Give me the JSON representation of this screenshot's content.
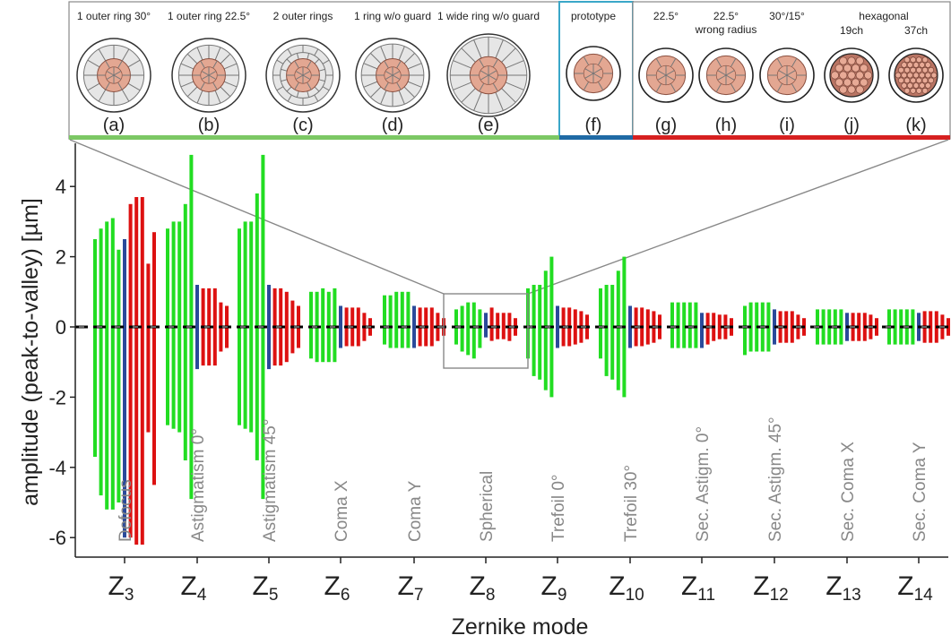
{
  "chart_data": {
    "type": "bar",
    "xlabel": "Zernike mode",
    "ylabel": "amplitude (peak-to-valley) [µm]",
    "ylim": [
      -6.5,
      5.2
    ],
    "yticks": [
      -6,
      -4,
      -2,
      0,
      2,
      4
    ],
    "grid": false,
    "legend": "none",
    "colors": {
      "ring_designs": "#22dd22",
      "prototype": "#2a4a9a",
      "prototype_variants": "#dd1111",
      "zero_line": "#000000",
      "frame": "#888888"
    },
    "categories": [
      {
        "tick": "Z",
        "sub": "3",
        "label": "Defocus"
      },
      {
        "tick": "Z",
        "sub": "4",
        "label": "Astigmatism 0°"
      },
      {
        "tick": "Z",
        "sub": "5",
        "label": "Astigmatism 45°"
      },
      {
        "tick": "Z",
        "sub": "6",
        "label": "Coma X"
      },
      {
        "tick": "Z",
        "sub": "7",
        "label": "Coma Y"
      },
      {
        "tick": "Z",
        "sub": "8",
        "label": "Spherical"
      },
      {
        "tick": "Z",
        "sub": "9",
        "label": "Trefoil 0°"
      },
      {
        "tick": "Z",
        "sub": "10",
        "label": "Trefoil 30°"
      },
      {
        "tick": "Z",
        "sub": "11",
        "label": "Sec. Astigm. 0°"
      },
      {
        "tick": "Z",
        "sub": "12",
        "label": "Sec. Astigm. 45°"
      },
      {
        "tick": "Z",
        "sub": "13",
        "label": "Sec. Coma X"
      },
      {
        "tick": "Z",
        "sub": "14",
        "label": "Sec. Coma Y"
      }
    ],
    "series": [
      {
        "key": "a",
        "group": "ring_designs",
        "pos": [
          2.5,
          2.8,
          2.8,
          1.0,
          0.9,
          0.5,
          1.1,
          1.1,
          0.7,
          0.6,
          0.5,
          0.5
        ],
        "neg": [
          -3.7,
          -2.8,
          -2.8,
          -0.9,
          -0.5,
          -0.5,
          -0.9,
          -0.9,
          -0.6,
          -0.8,
          -0.5,
          -0.5
        ]
      },
      {
        "key": "b",
        "group": "ring_designs",
        "pos": [
          2.8,
          3.0,
          3.0,
          1.0,
          0.9,
          0.6,
          1.2,
          1.2,
          0.7,
          0.7,
          0.5,
          0.5
        ],
        "neg": [
          -4.8,
          -2.9,
          -2.9,
          -1.0,
          -0.6,
          -0.7,
          -1.4,
          -1.4,
          -0.6,
          -0.7,
          -0.5,
          -0.5
        ]
      },
      {
        "key": "c",
        "group": "ring_designs",
        "pos": [
          3.0,
          3.0,
          3.0,
          1.1,
          1.0,
          0.7,
          1.2,
          1.2,
          0.7,
          0.7,
          0.5,
          0.5
        ],
        "neg": [
          -5.2,
          -3.0,
          -3.0,
          -1.0,
          -0.6,
          -0.8,
          -1.5,
          -1.5,
          -0.6,
          -0.7,
          -0.5,
          -0.5
        ]
      },
      {
        "key": "d",
        "group": "ring_designs",
        "pos": [
          3.1,
          3.5,
          3.8,
          1.0,
          1.0,
          0.7,
          1.6,
          1.6,
          0.7,
          0.7,
          0.5,
          0.5
        ],
        "neg": [
          -5.2,
          -3.8,
          -3.8,
          -1.0,
          -0.6,
          -0.9,
          -1.8,
          -1.8,
          -0.6,
          -0.7,
          -0.5,
          -0.5
        ]
      },
      {
        "key": "e",
        "group": "ring_designs",
        "pos": [
          2.2,
          4.9,
          4.9,
          1.1,
          1.0,
          0.5,
          2.0,
          2.0,
          0.7,
          0.7,
          0.5,
          0.5
        ],
        "neg": [
          -5.0,
          -4.9,
          -4.9,
          -1.0,
          -0.6,
          -0.6,
          -2.0,
          -2.0,
          -0.6,
          -0.7,
          -0.5,
          -0.5
        ]
      },
      {
        "key": "f",
        "group": "prototype",
        "pos": [
          2.5,
          1.2,
          1.2,
          0.6,
          0.6,
          0.4,
          0.6,
          0.6,
          0.4,
          0.5,
          0.4,
          0.4
        ],
        "neg": [
          -6.0,
          -1.2,
          -1.2,
          -0.6,
          -0.6,
          -0.3,
          -0.6,
          -0.6,
          -0.6,
          -0.5,
          -0.4,
          -0.4
        ]
      },
      {
        "key": "g",
        "group": "prototype_variants",
        "pos": [
          3.5,
          1.1,
          1.1,
          0.55,
          0.55,
          0.55,
          0.55,
          0.55,
          0.4,
          0.45,
          0.4,
          0.45
        ],
        "neg": [
          -6.0,
          -1.1,
          -1.1,
          -0.55,
          -0.55,
          -0.4,
          -0.55,
          -0.55,
          -0.5,
          -0.45,
          -0.4,
          -0.45
        ]
      },
      {
        "key": "h",
        "group": "prototype_variants",
        "pos": [
          3.7,
          1.1,
          1.1,
          0.55,
          0.55,
          0.4,
          0.55,
          0.55,
          0.4,
          0.45,
          0.4,
          0.45
        ],
        "neg": [
          -6.2,
          -1.1,
          -1.1,
          -0.55,
          -0.55,
          -0.35,
          -0.55,
          -0.55,
          -0.4,
          -0.45,
          -0.4,
          -0.45
        ]
      },
      {
        "key": "i",
        "group": "prototype_variants",
        "pos": [
          3.7,
          1.1,
          1.0,
          0.55,
          0.55,
          0.4,
          0.5,
          0.5,
          0.35,
          0.45,
          0.4,
          0.45
        ],
        "neg": [
          -6.2,
          -1.1,
          -1.0,
          -0.55,
          -0.55,
          -0.35,
          -0.5,
          -0.5,
          -0.35,
          -0.45,
          -0.4,
          -0.45
        ]
      },
      {
        "key": "j",
        "group": "prototype_variants",
        "pos": [
          1.8,
          0.7,
          0.75,
          0.4,
          0.4,
          0.4,
          0.45,
          0.45,
          0.35,
          0.35,
          0.35,
          0.35
        ],
        "neg": [
          -3.0,
          -0.7,
          -0.75,
          -0.4,
          -0.4,
          -0.4,
          -0.45,
          -0.45,
          -0.35,
          -0.35,
          -0.35,
          -0.35
        ]
      },
      {
        "key": "k",
        "group": "prototype_variants",
        "pos": [
          2.7,
          0.6,
          0.6,
          0.25,
          0.25,
          0.25,
          0.35,
          0.35,
          0.25,
          0.25,
          0.25,
          0.25
        ],
        "neg": [
          -4.5,
          -0.6,
          -0.6,
          -0.25,
          -0.25,
          -0.25,
          -0.35,
          -0.35,
          -0.25,
          -0.25,
          -0.25,
          -0.25
        ]
      }
    ],
    "inset_designs": [
      {
        "key": "a",
        "label": "(a)",
        "caption": [
          "1 outer ring 30°"
        ]
      },
      {
        "key": "b",
        "label": "(b)",
        "caption": [
          "1 outer ring 22.5°"
        ]
      },
      {
        "key": "c",
        "label": "(c)",
        "caption": [
          "2 outer rings"
        ]
      },
      {
        "key": "d",
        "label": "(d)",
        "caption": [
          "1 ring w/o guard"
        ]
      },
      {
        "key": "e",
        "label": "(e)",
        "caption": [
          "1 wide ring w/o guard"
        ]
      },
      {
        "key": "f",
        "label": "(f)",
        "caption": [
          "prototype"
        ]
      },
      {
        "key": "g",
        "label": "(g)",
        "caption": [
          "22.5°"
        ]
      },
      {
        "key": "h",
        "label": "(h)",
        "caption": [
          "22.5°",
          "wrong radius"
        ]
      },
      {
        "key": "i",
        "label": "(i)",
        "caption": [
          "30°/15°"
        ]
      },
      {
        "key": "j",
        "label": "(j)",
        "caption": [
          "19ch"
        ]
      },
      {
        "key": "k",
        "label": "(k)",
        "caption": [
          "37ch"
        ]
      }
    ],
    "inset_group_caption": "hexagonal"
  }
}
